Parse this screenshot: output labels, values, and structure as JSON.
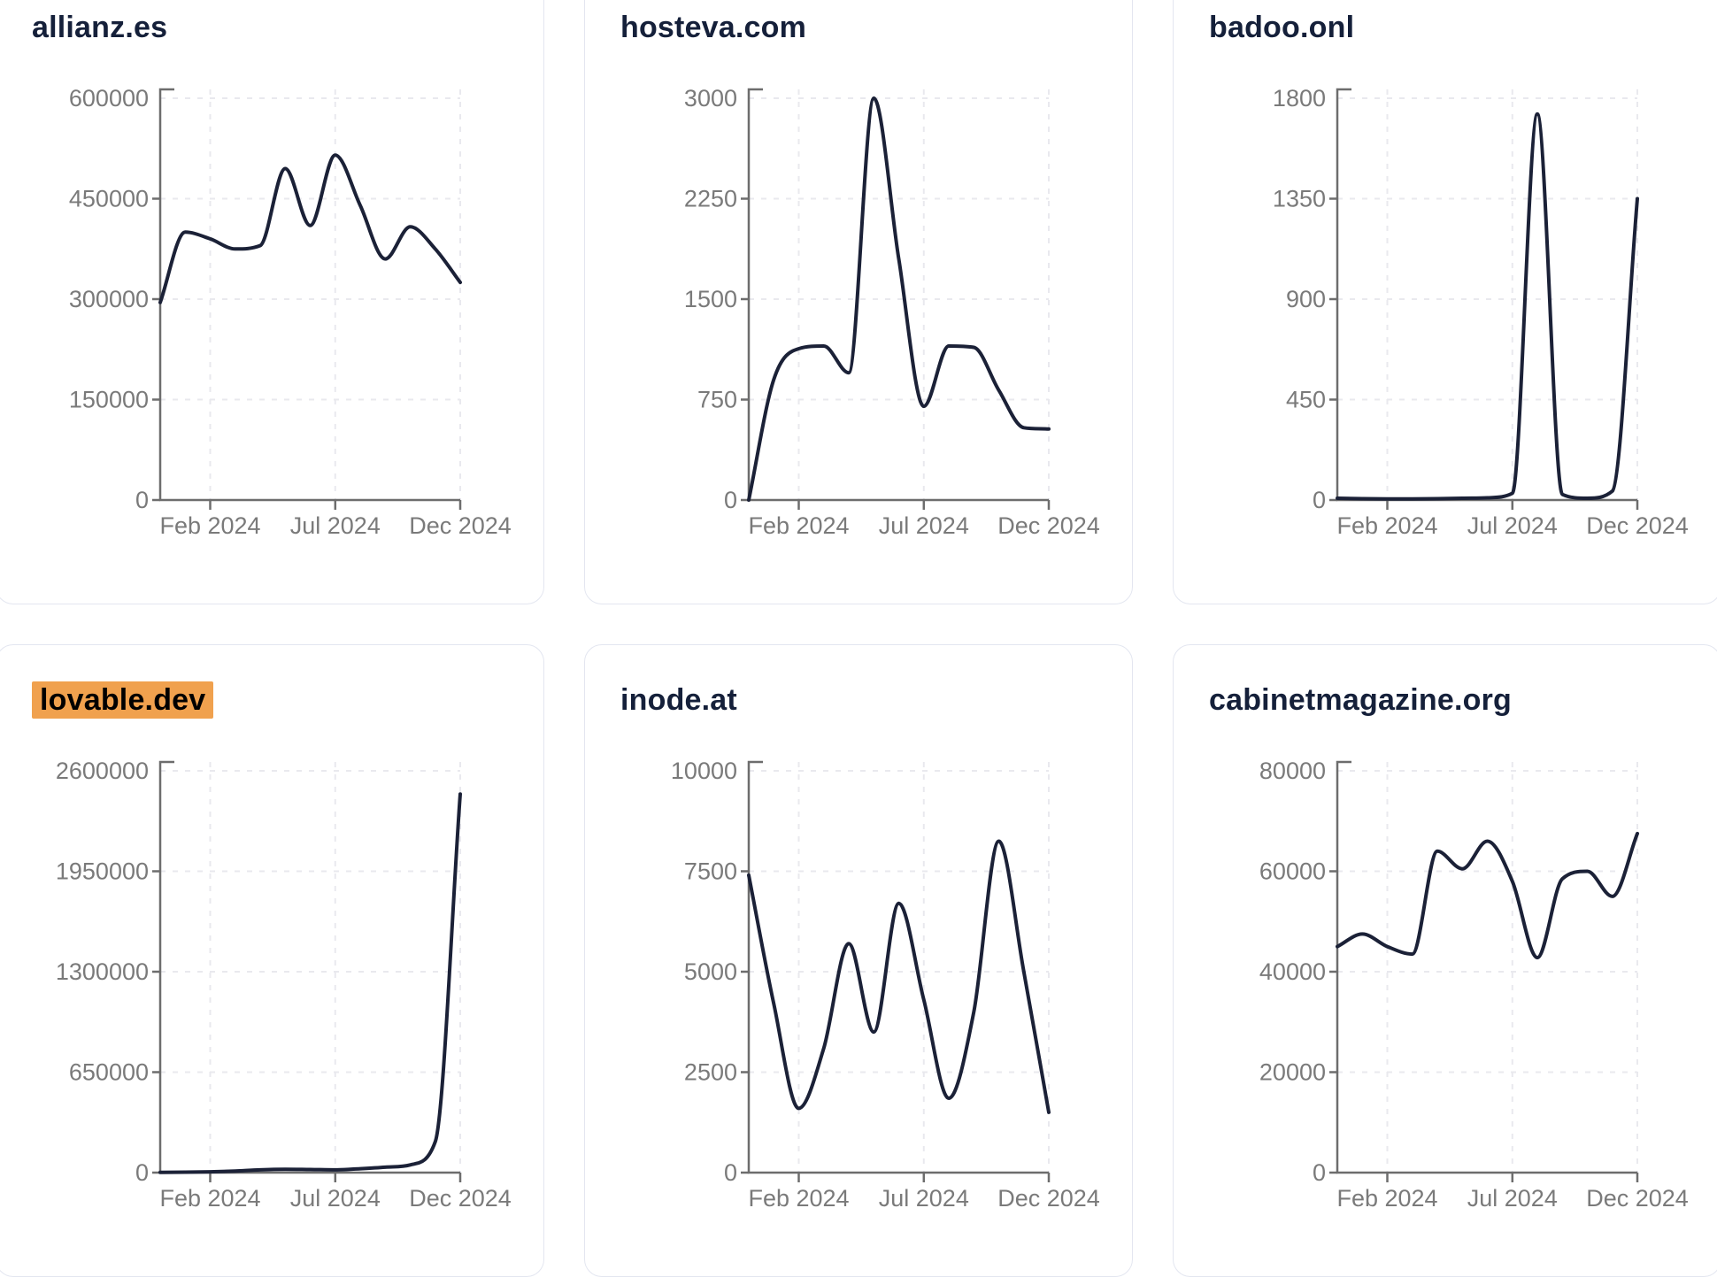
{
  "page": {
    "background_color": "#ffffff",
    "card_border_color": "#e3e6f0",
    "line_color": "#1b2137",
    "axis_color": "#6d6d6d",
    "tick_label_color": "#7a7a7a",
    "title_color": "#15203a",
    "highlight_color": "#f0a14e",
    "x_tick_labels": [
      "Feb 2024",
      "Jul 2024",
      "Dec 2024"
    ]
  },
  "chart_data": [
    {
      "type": "line",
      "title": "allianz.es",
      "highlighted": false,
      "x": [
        "Dec 2023",
        "Jan 2024",
        "Feb 2024",
        "Mar 2024",
        "Apr 2024",
        "May 2024",
        "Jun 2024",
        "Jul 2024",
        "Aug 2024",
        "Sep 2024",
        "Oct 2024",
        "Nov 2024",
        "Dec 2024"
      ],
      "values": [
        295000,
        400000,
        390000,
        375000,
        380000,
        495000,
        410000,
        515000,
        440000,
        360000,
        408000,
        375000,
        325000
      ],
      "y_ticks": [
        0,
        150000,
        300000,
        450000,
        600000
      ],
      "ylim": [
        0,
        600000
      ],
      "x_tick_labels": [
        "Feb 2024",
        "Jul 2024",
        "Dec 2024"
      ],
      "grid": true,
      "legend": "none"
    },
    {
      "type": "line",
      "title": "hosteva.com",
      "highlighted": false,
      "x": [
        "Dec 2023",
        "Jan 2024",
        "Feb 2024",
        "Mar 2024",
        "Apr 2024",
        "May 2024",
        "Jun 2024",
        "Jul 2024",
        "Aug 2024",
        "Sep 2024",
        "Oct 2024",
        "Nov 2024",
        "Dec 2024"
      ],
      "values": [
        0,
        900,
        1130,
        1150,
        950,
        3000,
        1800,
        700,
        1150,
        1140,
        820,
        540,
        530
      ],
      "y_ticks": [
        0,
        750,
        1500,
        2250,
        3000
      ],
      "ylim": [
        0,
        3000
      ],
      "x_tick_labels": [
        "Feb 2024",
        "Jul 2024",
        "Dec 2024"
      ],
      "grid": true,
      "legend": "none"
    },
    {
      "type": "line",
      "title": "badoo.onl",
      "highlighted": false,
      "x": [
        "Dec 2023",
        "Jan 2024",
        "Feb 2024",
        "Mar 2024",
        "Apr 2024",
        "May 2024",
        "Jun 2024",
        "Jul 2024",
        "Aug 2024",
        "Sep 2024",
        "Oct 2024",
        "Nov 2024",
        "Dec 2024"
      ],
      "values": [
        8,
        6,
        5,
        5,
        6,
        8,
        10,
        30,
        1730,
        25,
        8,
        40,
        1350
      ],
      "y_ticks": [
        0,
        450,
        900,
        1350,
        1800
      ],
      "ylim": [
        0,
        1800
      ],
      "x_tick_labels": [
        "Feb 2024",
        "Jul 2024",
        "Dec 2024"
      ],
      "grid": true,
      "legend": "none"
    },
    {
      "type": "line",
      "title": "lovable.dev",
      "highlighted": true,
      "x": [
        "Dec 2023",
        "Jan 2024",
        "Feb 2024",
        "Mar 2024",
        "Apr 2024",
        "May 2024",
        "Jun 2024",
        "Jul 2024",
        "Aug 2024",
        "Sep 2024",
        "Oct 2024",
        "Nov 2024",
        "Dec 2024"
      ],
      "values": [
        2000,
        3000,
        5000,
        10000,
        18000,
        22000,
        20000,
        18000,
        25000,
        35000,
        50000,
        200000,
        2450000
      ],
      "y_ticks": [
        0,
        650000,
        1300000,
        1950000,
        2600000
      ],
      "ylim": [
        0,
        2600000
      ],
      "x_tick_labels": [
        "Feb 2024",
        "Jul 2024",
        "Dec 2024"
      ],
      "grid": true,
      "legend": "none"
    },
    {
      "type": "line",
      "title": "inode.at",
      "highlighted": false,
      "x": [
        "Dec 2023",
        "Jan 2024",
        "Feb 2024",
        "Mar 2024",
        "Apr 2024",
        "May 2024",
        "Jun 2024",
        "Jul 2024",
        "Aug 2024",
        "Sep 2024",
        "Oct 2024",
        "Nov 2024",
        "Dec 2024"
      ],
      "values": [
        7400,
        4200,
        1600,
        3100,
        5700,
        3500,
        6700,
        4300,
        1850,
        4000,
        8250,
        5000,
        1500
      ],
      "y_ticks": [
        0,
        2500,
        5000,
        7500,
        10000
      ],
      "ylim": [
        0,
        10000
      ],
      "x_tick_labels": [
        "Feb 2024",
        "Jul 2024",
        "Dec 2024"
      ],
      "grid": true,
      "legend": "none"
    },
    {
      "type": "line",
      "title": "cabinetmagazine.org",
      "highlighted": false,
      "x": [
        "Dec 2023",
        "Jan 2024",
        "Feb 2024",
        "Mar 2024",
        "Apr 2024",
        "May 2024",
        "Jun 2024",
        "Jul 2024",
        "Aug 2024",
        "Sep 2024",
        "Oct 2024",
        "Nov 2024",
        "Dec 2024"
      ],
      "values": [
        45000,
        47500,
        45000,
        43500,
        64000,
        60500,
        66000,
        58000,
        42800,
        58500,
        60000,
        55000,
        67500
      ],
      "y_ticks": [
        0,
        20000,
        40000,
        60000,
        80000
      ],
      "ylim": [
        0,
        80000
      ],
      "x_tick_labels": [
        "Feb 2024",
        "Jul 2024",
        "Dec 2024"
      ],
      "grid": true,
      "legend": "none"
    }
  ]
}
